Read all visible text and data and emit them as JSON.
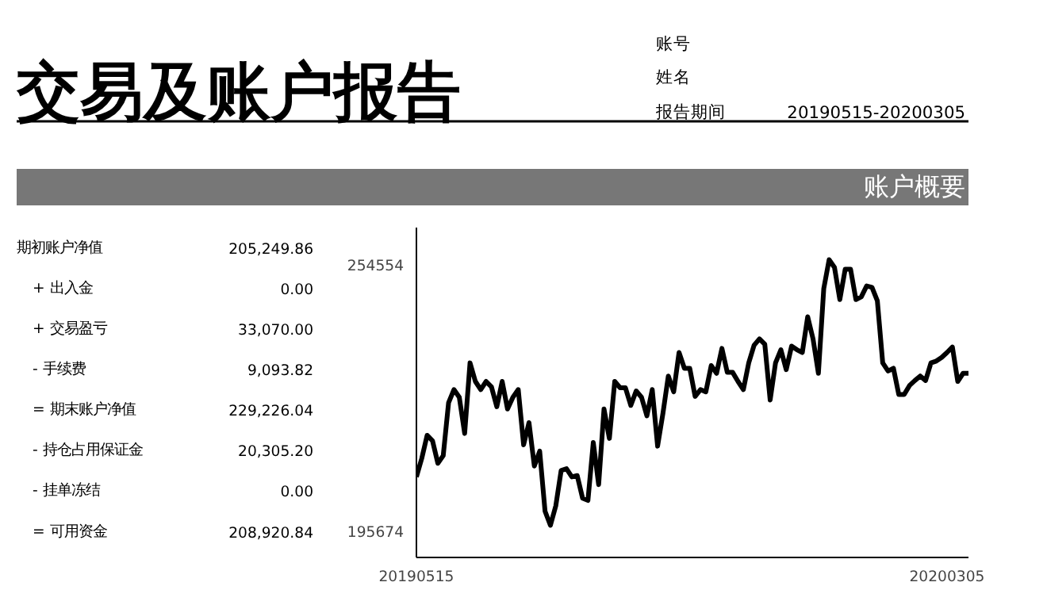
{
  "chart_data": [
    {
      "type": "other",
      "title": "交易及账户报告",
      "annotations": [
        "账号",
        "姓名",
        "报告期间",
        "20190515-20200305",
        "账户概要",
        "期初账户净值",
        "205,249.86",
        "+ 出入金",
        "0.00",
        "+ 交易盈亏",
        "33,070.00",
        "- 手续费",
        "9,093.82",
        "= 期末账户净值",
        "229,226.04",
        "- 持仓占用保证金",
        "20,305.20",
        "- 挂单冻结",
        "0.00",
        "= 可用资金",
        "208,920.84"
      ]
    },
    {
      "type": "line",
      "categories": [
        "20190515",
        null,
        null,
        null,
        null,
        null,
        null,
        null,
        null,
        null,
        null,
        null,
        null,
        null,
        null,
        null,
        null,
        null,
        null,
        null,
        null,
        null,
        null,
        null,
        null,
        null,
        null,
        null,
        null,
        null,
        null,
        null,
        null,
        null,
        null,
        null,
        null,
        null,
        null,
        null,
        null,
        null,
        null,
        null,
        null,
        null,
        null,
        null,
        null,
        null,
        null,
        null,
        null,
        null,
        null,
        null,
        null,
        null,
        null,
        null,
        null,
        null,
        null,
        null,
        null,
        null,
        null,
        null,
        null,
        null,
        null,
        null,
        null,
        null,
        null,
        null,
        null,
        null,
        null,
        null,
        null,
        null,
        null,
        null,
        null,
        null,
        null,
        null,
        null,
        null,
        null,
        null,
        null,
        null,
        null,
        null,
        null,
        null,
        null,
        "20200305",
        null,
        null,
        null,
        null
      ],
      "series": [
        {
          "color": "#000000",
          "values": [
            207700,
            211800,
            216900,
            215700,
            210700,
            212400,
            224100,
            227000,
            225300,
            217300,
            232900,
            228800,
            227000,
            228800,
            227600,
            223200,
            228800,
            222700,
            225300,
            227000,
            214800,
            219700,
            210100,
            213400,
            200100,
            197000,
            201300,
            209100,
            209500,
            207700,
            208000,
            203000,
            202500,
            215300,
            206000,
            222700,
            216200,
            228800,
            227400,
            227400,
            223500,
            226700,
            225300,
            221200,
            227000,
            214500,
            221800,
            230000,
            226500,
            235200,
            231700,
            231700,
            225500,
            227000,
            226500,
            232300,
            230600,
            236100,
            230800,
            230800,
            228800,
            227000,
            232900,
            236800,
            238200,
            237000,
            224700,
            232900,
            235800,
            231400,
            236600,
            235800,
            235200,
            243100,
            238200,
            230600,
            249300,
            255700,
            254000,
            246900,
            253600,
            253600,
            246900,
            247500,
            249900,
            249600,
            246600,
            232900,
            231100,
            231700,
            225900,
            225900,
            227900,
            229000,
            230000,
            229000,
            232900,
            233300,
            234100,
            235200,
            236400,
            228800,
            230600,
            230600
          ]
        }
      ],
      "ylim": [
        189900,
        262800
      ],
      "yticks": [
        195674,
        254554
      ],
      "grid": false,
      "marker": "none",
      "line_style": "solid"
    }
  ]
}
